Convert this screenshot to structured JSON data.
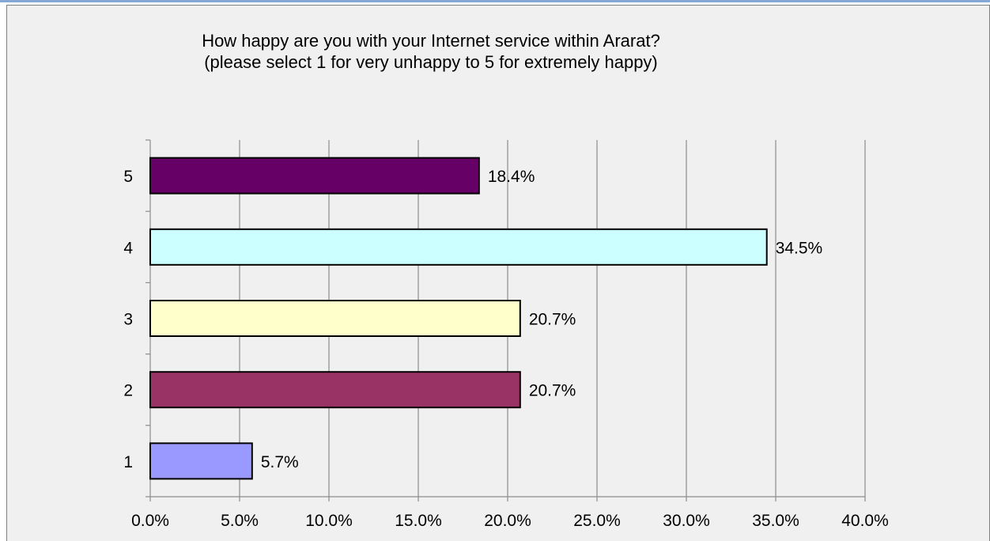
{
  "chart_data": {
    "type": "bar",
    "orientation": "horizontal",
    "title": "How happy are you with your Internet service within Ararat?\n(please select 1 for very unhappy to 5 for extremely happy)",
    "xlabel": "",
    "ylabel": "",
    "xlim": [
      0,
      40
    ],
    "x_ticks": [
      "0.0%",
      "5.0%",
      "10.0%",
      "15.0%",
      "20.0%",
      "25.0%",
      "30.0%",
      "35.0%",
      "40.0%"
    ],
    "grid": "vertical",
    "legend": "none",
    "categories": [
      "5",
      "4",
      "3",
      "2",
      "1"
    ],
    "values": [
      18.4,
      34.5,
      20.7,
      20.7,
      5.7
    ],
    "data_labels": [
      "18.4%",
      "34.5%",
      "20.7%",
      "20.7%",
      "5.7%"
    ],
    "colors": [
      "#660066",
      "#ccffff",
      "#ffffcc",
      "#993366",
      "#9999ff"
    ]
  }
}
